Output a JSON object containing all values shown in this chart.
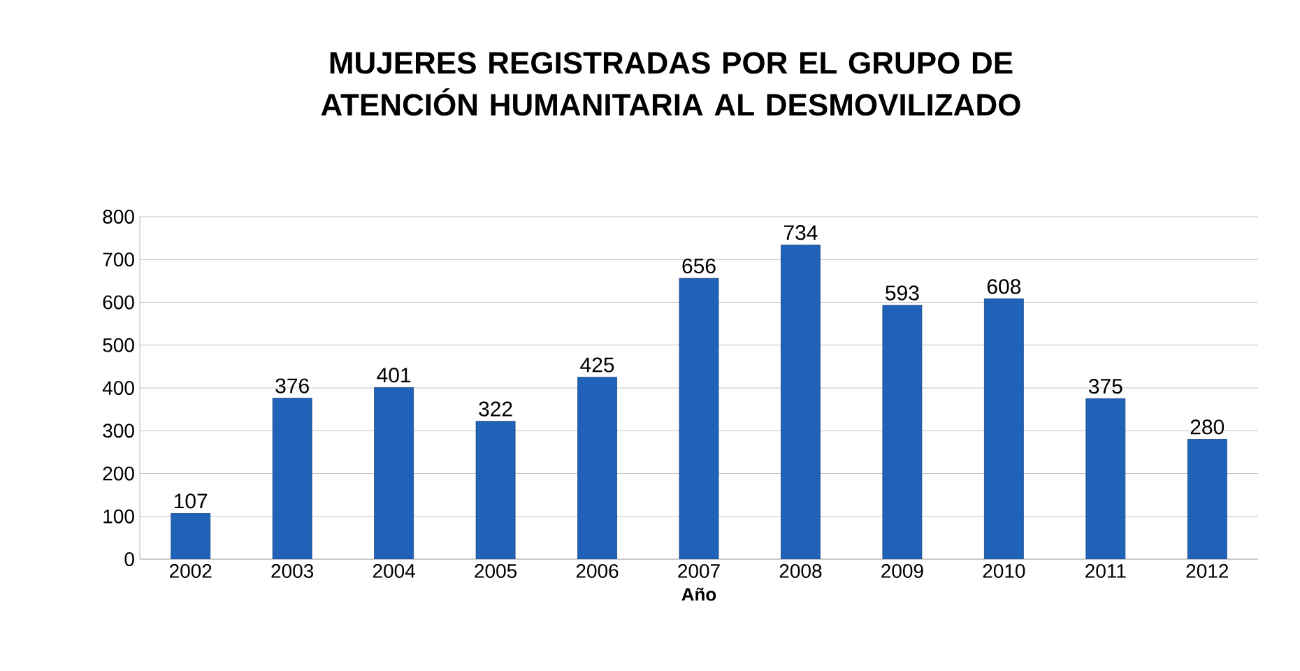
{
  "chart_data": {
    "type": "bar",
    "title": "MUJERES REGISTRADAS POR EL GRUPO DE ATENCIÓN HUMANITARIA AL DESMOVILIZADO",
    "xlabel": "Año",
    "categories": [
      "2002",
      "2003",
      "2004",
      "2005",
      "2006",
      "2007",
      "2008",
      "2009",
      "2010",
      "2011",
      "2012"
    ],
    "values": [
      107,
      376,
      401,
      322,
      425,
      656,
      734,
      593,
      608,
      375,
      280
    ],
    "color": "#1f62b8",
    "ylim": [
      0,
      800
    ],
    "yticks": [
      0,
      100,
      200,
      300,
      400,
      500,
      600,
      700,
      800
    ],
    "grid": "y",
    "data_labels": true
  }
}
